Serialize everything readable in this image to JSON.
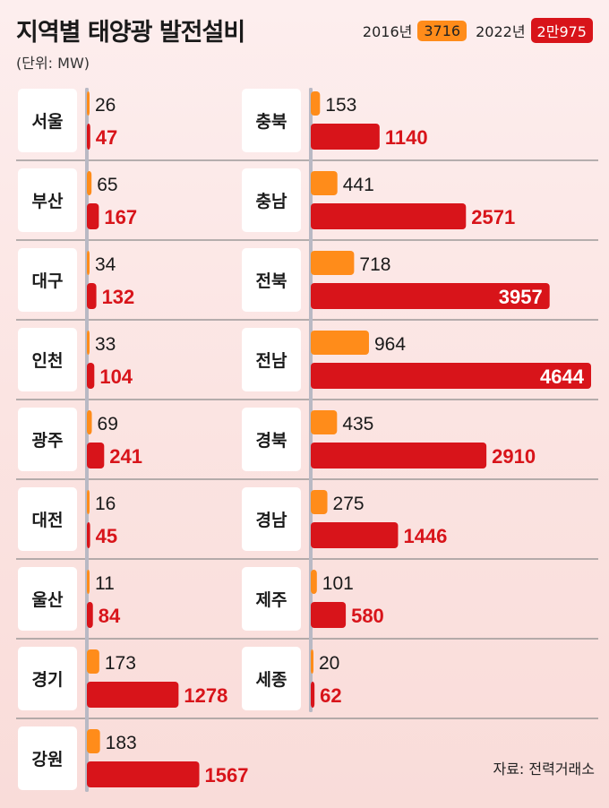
{
  "header": {
    "title": "지역별 태양광 발전설비",
    "unit": "(단위: MW)"
  },
  "legend": {
    "old_year": "2016년",
    "old_total": "3716",
    "new_year": "2022년",
    "new_total": "2만975"
  },
  "source": "자료: 전력거래소",
  "colors": {
    "old": "#ff8c1a",
    "new": "#d8141a"
  },
  "chart_data": {
    "type": "bar",
    "orientation": "horizontal",
    "series": [
      {
        "name": "2016년",
        "color": "#ff8c1a"
      },
      {
        "name": "2022년",
        "color": "#d8141a"
      }
    ],
    "columns": [
      {
        "regions": [
          {
            "name": "서울",
            "v2016": 26,
            "v2022": 47
          },
          {
            "name": "부산",
            "v2016": 65,
            "v2022": 167
          },
          {
            "name": "대구",
            "v2016": 34,
            "v2022": 132
          },
          {
            "name": "인천",
            "v2016": 33,
            "v2022": 104
          },
          {
            "name": "광주",
            "v2016": 69,
            "v2022": 241
          },
          {
            "name": "대전",
            "v2016": 16,
            "v2022": 45
          },
          {
            "name": "울산",
            "v2016": 11,
            "v2022": 84
          },
          {
            "name": "경기",
            "v2016": 173,
            "v2022": 1278
          },
          {
            "name": "강원",
            "v2016": 183,
            "v2022": 1567
          }
        ]
      },
      {
        "regions": [
          {
            "name": "충북",
            "v2016": 153,
            "v2022": 1140
          },
          {
            "name": "충남",
            "v2016": 441,
            "v2022": 2571
          },
          {
            "name": "전북",
            "v2016": 718,
            "v2022": 3957
          },
          {
            "name": "전남",
            "v2016": 964,
            "v2022": 4644
          },
          {
            "name": "경북",
            "v2016": 435,
            "v2022": 2910
          },
          {
            "name": "경남",
            "v2016": 275,
            "v2022": 1446
          },
          {
            "name": "제주",
            "v2016": 101,
            "v2022": 580
          },
          {
            "name": "세종",
            "v2016": 20,
            "v2022": 62
          }
        ]
      }
    ]
  }
}
